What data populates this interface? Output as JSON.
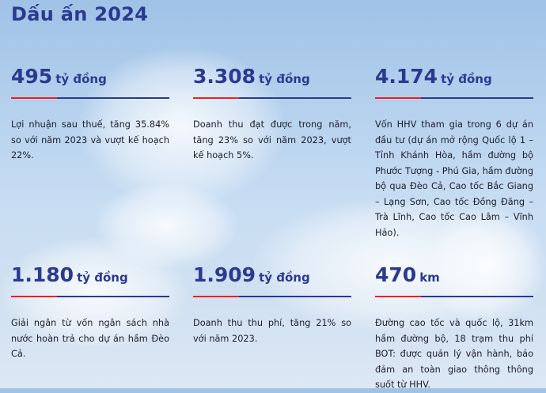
{
  "title": "Dấu ấn 2024",
  "colors": {
    "primary": "#2b3990",
    "accent": "#e8202a"
  },
  "cards": [
    {
      "value": "495",
      "unit": "tỷ đồng",
      "text": "Lợi nhuận sau thuế, tăng 35.84% so với năm 2023 và vượt kế hoạch 22%."
    },
    {
      "value": "3.308",
      "unit": "tỷ đồng",
      "text": "Doanh thu đạt được trong năm, tăng 23% so với năm 2023, vượt kế hoạch 5%."
    },
    {
      "value": "4.174",
      "unit": "tỷ đồng",
      "text": "Vốn HHV tham gia trong 6 dự án đầu tư (dự án mở rộng Quốc lộ 1 – Tỉnh Khánh Hòa, hầm đường bộ Phước Tượng - Phú Gia, hầm đường bộ qua Đèo Cả, Cao tốc Bắc Giang – Lạng Sơn, Cao tốc Đồng Đăng – Trà Lĩnh, Cao tốc Cao Lâm – Vĩnh Hảo)."
    },
    {
      "value": "1.180",
      "unit": "tỷ đồng",
      "text": "Giải ngân từ vốn ngân sách nhà nước hoàn trả cho dự án hầm Đèo Cả."
    },
    {
      "value": "1.909",
      "unit": "tỷ đồng",
      "text": "Doanh thu thu phí, tăng 21% so với năm 2023."
    },
    {
      "value": "470",
      "unit": "km",
      "text": "Đường cao tốc và quốc lộ, 31km hầm đường bộ, 18 trạm thu phí BOT: được quản lý vận hành, bảo đảm an toàn giao thông thông suốt từ HHV."
    }
  ]
}
